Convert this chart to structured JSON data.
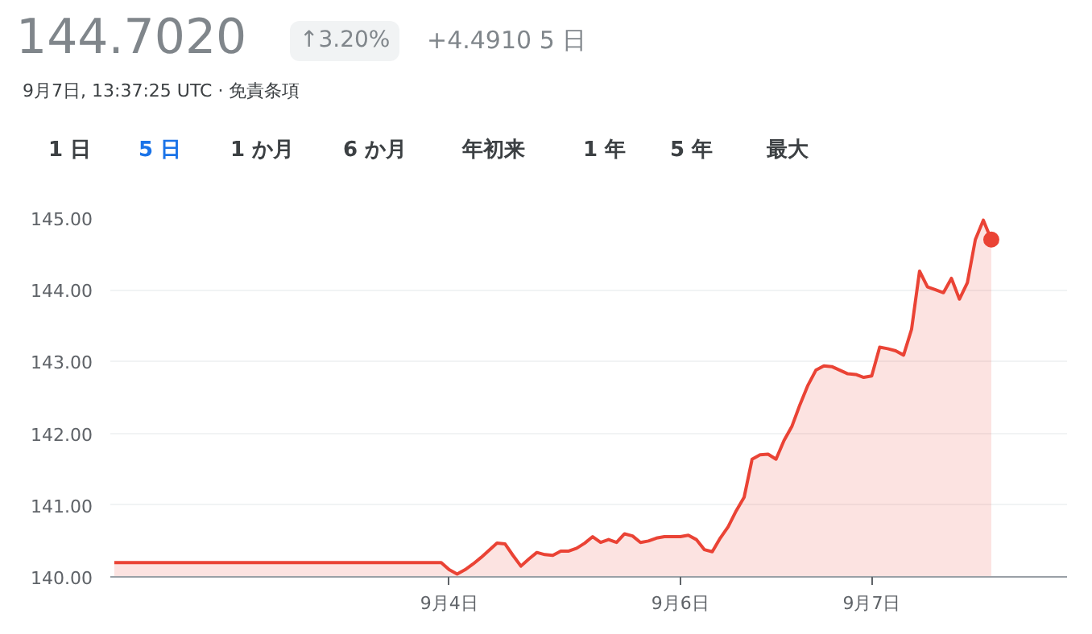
{
  "chart_data": {
    "type": "area",
    "title": "144.7020",
    "subtitle": "9月7日, 13:37:25 UTC · 免責条項",
    "annotations": [
      "↑3.20%",
      "+4.4910 5 日",
      "1 日",
      "5 日",
      "1 か月",
      "6 か月",
      "年初来",
      "1 年",
      "5 年",
      "最大"
    ],
    "categories": [
      null,
      null,
      null,
      null,
      null,
      null,
      null,
      null,
      null,
      null,
      null,
      null,
      null,
      null,
      null,
      null,
      null,
      null,
      null,
      null,
      null,
      null,
      null,
      null,
      null,
      null,
      null,
      null,
      null,
      null,
      null,
      null,
      null,
      null,
      null,
      null,
      null,
      null,
      null,
      null,
      null,
      null,
      "9月4日",
      null,
      null,
      null,
      null,
      null,
      null,
      null,
      null,
      null,
      null,
      null,
      null,
      null,
      null,
      null,
      null,
      null,
      null,
      null,
      null,
      null,
      null,
      null,
      null,
      null,
      null,
      null,
      null,
      "9月6日",
      null,
      null,
      null,
      null,
      null,
      null,
      null,
      null,
      null,
      null,
      null,
      null,
      null,
      null,
      null,
      null,
      null,
      null,
      null,
      null,
      null,
      null,
      null,
      "9月7日",
      null,
      null,
      null,
      null,
      null,
      null,
      null,
      null,
      null,
      null,
      null,
      null,
      null,
      null,
      null,
      null,
      null,
      null,
      null,
      null,
      null,
      null,
      null,
      null
    ],
    "series": [
      {
        "color": "#ea4335",
        "values": [
          140.2,
          140.2,
          140.2,
          140.2,
          140.2,
          140.2,
          140.2,
          140.2,
          140.2,
          140.2,
          140.2,
          140.2,
          140.2,
          140.2,
          140.2,
          140.2,
          140.2,
          140.2,
          140.2,
          140.2,
          140.2,
          140.2,
          140.2,
          140.2,
          140.2,
          140.2,
          140.2,
          140.2,
          140.2,
          140.2,
          140.2,
          140.2,
          140.2,
          140.2,
          140.2,
          140.2,
          140.2,
          140.2,
          140.2,
          140.2,
          140.2,
          140.2,
          140.1,
          140.04,
          140.1,
          140.18,
          140.27,
          140.37,
          140.47,
          140.46,
          140.3,
          140.15,
          140.25,
          140.34,
          140.31,
          140.3,
          140.36,
          140.36,
          140.4,
          140.47,
          140.56,
          140.48,
          140.52,
          140.48,
          140.6,
          140.57,
          140.48,
          140.5,
          140.54,
          140.56,
          140.56,
          140.56,
          140.58,
          140.52,
          140.38,
          140.35,
          140.54,
          140.7,
          140.92,
          141.11,
          141.64,
          141.7,
          141.71,
          141.64,
          141.9,
          142.1,
          142.4,
          142.67,
          142.88,
          142.94,
          142.93,
          142.88,
          142.83,
          142.82,
          142.78,
          142.8,
          143.2,
          143.18,
          143.15,
          143.09,
          143.45,
          144.26,
          144.04,
          144.0,
          143.96,
          144.16,
          143.87,
          144.1,
          144.7,
          144.97,
          144.7,
          null,
          null,
          null,
          null,
          null,
          null,
          null,
          null,
          null
        ]
      }
    ],
    "ylim": [
      140,
      145
    ],
    "yticks": [
      {
        "value": 140,
        "label": "140.00"
      },
      {
        "value": 141,
        "label": "141.00"
      },
      {
        "value": 142,
        "label": "142.00"
      },
      {
        "value": 143,
        "label": "143.00"
      },
      {
        "value": 144,
        "label": "144.00"
      },
      {
        "value": 145,
        "label": "145.00"
      }
    ],
    "grid": "y"
  }
}
